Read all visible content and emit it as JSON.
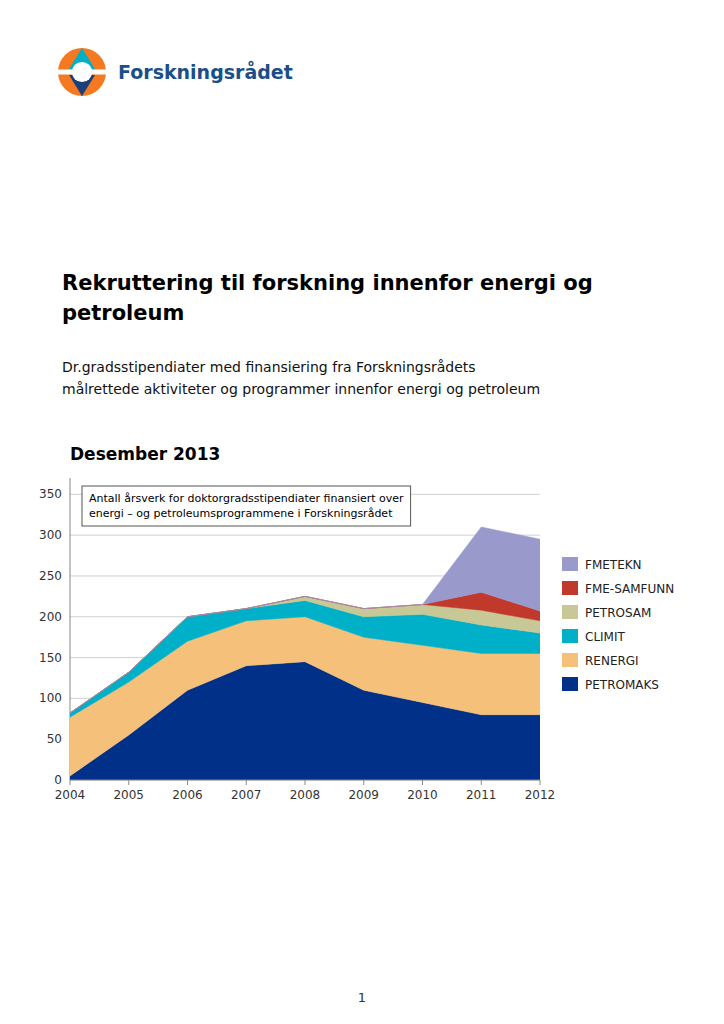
{
  "logo_text": "Forskningsrådet",
  "title": [
    "Rekruttering til forskning innenfor energi og",
    "petroleum"
  ],
  "subtitle": [
    "Dr.gradsstipendiater med finansiering fra Forskningsrådets",
    "målrettede aktiviteter og programmer innenfor energi og petroleum"
  ],
  "page_number": "1",
  "chart_data": {
    "type": "area",
    "stacked": true,
    "title": "Desember 2013",
    "annotations": [
      "Antall årsverk for doktorgradsstipendiater finansiert over",
      "energi – og petroleumsprogrammene i Forskningsrådet"
    ],
    "x": [
      2004,
      2005,
      2006,
      2007,
      2008,
      2009,
      2010,
      2011,
      2012
    ],
    "series": [
      {
        "name": "PETROMAKS",
        "color": "#003087",
        "values": [
          5,
          55,
          110,
          140,
          145,
          110,
          95,
          80,
          80
        ]
      },
      {
        "name": "RENERGI",
        "color": "#f5c07a",
        "values": [
          72,
          65,
          60,
          55,
          55,
          65,
          70,
          75,
          75
        ]
      },
      {
        "name": "CLIMIT",
        "color": "#00b0c8",
        "values": [
          5,
          12,
          30,
          15,
          20,
          25,
          38,
          35,
          25
        ]
      },
      {
        "name": "PETROSAM",
        "color": "#c8c896",
        "values": [
          0,
          0,
          0,
          0,
          5,
          10,
          12,
          18,
          15
        ]
      },
      {
        "name": "FME-SAMFUNN",
        "color": "#c0392b",
        "values": [
          0,
          0,
          0,
          0,
          0,
          0,
          0,
          22,
          12
        ]
      },
      {
        "name": "FMETEKN",
        "color": "#9999cc",
        "values": [
          0,
          0,
          0,
          0,
          0,
          0,
          0,
          80,
          88
        ]
      }
    ],
    "xlim": [
      2004,
      2012
    ],
    "xticks": [
      2004,
      2005,
      2006,
      2007,
      2008,
      2009,
      2010,
      2011,
      2012
    ],
    "ylim": [
      0,
      370
    ],
    "yticks": [
      0,
      50,
      100,
      150,
      200,
      250,
      300,
      350
    ],
    "grid": true,
    "legend": "right"
  }
}
